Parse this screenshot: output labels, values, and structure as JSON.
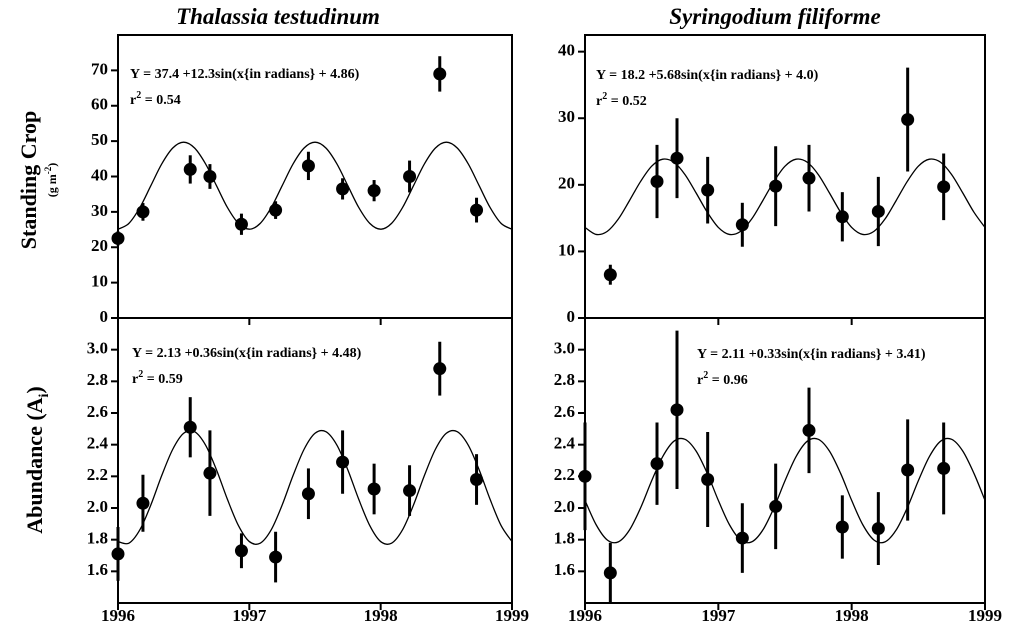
{
  "chart_data": [
    {
      "type": "scatter",
      "title": "Thalassia testudinum",
      "ylabel": "Standing Crop",
      "yunit_parts": [
        "(g m",
        "-2",
        ")"
      ],
      "equation": "Y = 37.4 +12.3sin(x{in radians} + 4.86)",
      "r2_parts": [
        "r",
        "2",
        " = 0.54"
      ],
      "color": "#000000",
      "x": [
        1996.0,
        1996.19,
        1996.55,
        1996.7,
        1996.94,
        1997.2,
        1997.45,
        1997.71,
        1997.95,
        1998.22,
        1998.45,
        1998.73
      ],
      "values": [
        22.5,
        30,
        42,
        40,
        26.5,
        30.5,
        43,
        36.5,
        36,
        40,
        69,
        30.5
      ],
      "errors": [
        2,
        2.5,
        4,
        3.5,
        3,
        2.5,
        4,
        3,
        3,
        4.5,
        5,
        3.5
      ],
      "fit": {
        "x": [
          1996,
          1996.083,
          1996.167,
          1996.25,
          1996.333,
          1996.417,
          1996.5,
          1996.583,
          1996.667,
          1996.75,
          1996.833,
          1996.917,
          1997,
          1997.083,
          1997.167,
          1997.25,
          1997.333,
          1997.417,
          1997.5,
          1997.583,
          1997.667,
          1997.75,
          1997.833,
          1997.917,
          1998,
          1998.083,
          1998.167,
          1998.25,
          1998.333,
          1998.417,
          1998.5,
          1998.583,
          1998.667,
          1998.75,
          1998.833,
          1998.917,
          1999
        ],
        "values": [
          25.1,
          26.75,
          31.25,
          37.4,
          43.55,
          48.05,
          49.7,
          48.05,
          43.55,
          37.4,
          31.25,
          26.75,
          25.1,
          26.75,
          31.25,
          37.4,
          43.55,
          48.05,
          49.7,
          48.05,
          43.55,
          37.4,
          31.25,
          26.75,
          25.1,
          26.75,
          31.25,
          37.4,
          43.55,
          48.05,
          49.7,
          48.05,
          43.55,
          37.4,
          31.25,
          26.75,
          25.1
        ]
      },
      "xlim": [
        1996,
        1999
      ],
      "ylim": [
        0,
        80
      ],
      "yticks": [
        0,
        10,
        20,
        30,
        40,
        50,
        60,
        70
      ]
    },
    {
      "type": "scatter",
      "title": "Syringodium filiforme",
      "equation": "Y = 18.2 +5.68sin(x{in radians} + 4.0)",
      "r2_parts": [
        "r",
        "2",
        " = 0.52"
      ],
      "color": "#000000",
      "x": [
        1996.19,
        1996.54,
        1996.69,
        1996.92,
        1997.18,
        1997.43,
        1997.68,
        1997.93,
        1998.2,
        1998.42,
        1998.69
      ],
      "values": [
        6.5,
        20.5,
        24,
        19.2,
        14,
        19.8,
        21,
        15.2,
        16,
        29.8,
        19.7
      ],
      "errors": [
        1.5,
        5.5,
        6,
        5,
        3.3,
        6,
        5,
        3.7,
        5.2,
        7.8,
        5
      ],
      "fit": {
        "x": [
          1996,
          1996.083,
          1996.167,
          1996.25,
          1996.333,
          1996.417,
          1996.5,
          1996.583,
          1996.667,
          1996.75,
          1996.833,
          1996.917,
          1997,
          1997.083,
          1997.167,
          1997.25,
          1997.333,
          1997.417,
          1997.5,
          1997.583,
          1997.667,
          1997.75,
          1997.833,
          1997.917,
          1998,
          1998.083,
          1998.167,
          1998.25,
          1998.333,
          1998.417,
          1998.5,
          1998.583,
          1998.667,
          1998.75,
          1998.833,
          1998.917,
          1999
        ],
        "values": [
          13.6,
          12.55,
          13.01,
          14.86,
          17.61,
          20.51,
          22.8,
          23.85,
          23.39,
          21.54,
          18.79,
          15.89,
          13.6,
          12.55,
          13.01,
          14.86,
          17.61,
          20.51,
          22.8,
          23.85,
          23.39,
          21.54,
          18.79,
          15.89,
          13.6,
          12.55,
          13.01,
          14.86,
          17.61,
          20.51,
          22.8,
          23.85,
          23.39,
          21.54,
          18.79,
          15.89,
          13.6
        ]
      },
      "xlim": [
        1996,
        1999
      ],
      "ylim": [
        0,
        42.5
      ],
      "yticks": [
        0,
        10,
        20,
        30,
        40
      ]
    },
    {
      "type": "scatter",
      "ylabel_parts": [
        "Abundance (A",
        "i",
        ")"
      ],
      "equation": "Y = 2.13 +0.36sin(x{in radians} + 4.48)",
      "r2_parts": [
        "r",
        "2",
        " = 0.59"
      ],
      "color": "#000000",
      "x": [
        1996.0,
        1996.19,
        1996.55,
        1996.7,
        1996.94,
        1997.2,
        1997.45,
        1997.71,
        1997.95,
        1998.22,
        1998.45,
        1998.73
      ],
      "values": [
        1.71,
        2.03,
        2.51,
        2.22,
        1.73,
        1.69,
        2.09,
        2.29,
        2.12,
        2.11,
        2.88,
        2.18
      ],
      "errors": [
        0.17,
        0.18,
        0.19,
        0.27,
        0.11,
        0.16,
        0.16,
        0.2,
        0.16,
        0.16,
        0.17,
        0.16
      ],
      "fit": {
        "x": [
          1996,
          1996.083,
          1996.167,
          1996.25,
          1996.333,
          1996.417,
          1996.5,
          1996.583,
          1996.667,
          1996.75,
          1996.833,
          1996.917,
          1997,
          1997.083,
          1997.167,
          1997.25,
          1997.333,
          1997.417,
          1997.5,
          1997.583,
          1997.667,
          1997.75,
          1997.833,
          1997.917,
          1998,
          1998.083,
          1998.167,
          1998.25,
          1998.333,
          1998.417,
          1998.5,
          1998.583,
          1998.667,
          1998.75,
          1998.833,
          1998.917,
          1999
        ],
        "values": [
          1.788,
          1.778,
          1.863,
          2.019,
          2.205,
          2.371,
          2.472,
          2.482,
          2.397,
          2.241,
          2.055,
          1.889,
          1.788,
          1.778,
          1.863,
          2.019,
          2.205,
          2.371,
          2.472,
          2.482,
          2.397,
          2.241,
          2.055,
          1.889,
          1.788,
          1.778,
          1.863,
          2.019,
          2.205,
          2.371,
          2.472,
          2.482,
          2.397,
          2.241,
          2.055,
          1.889,
          1.788
        ]
      },
      "xlim": [
        1996,
        1999
      ],
      "xticks": [
        1996,
        1997,
        1998,
        1999
      ],
      "ylim": [
        1.4,
        3.2
      ],
      "yticks": [
        1.6,
        1.8,
        {
          "value": 2,
          "label": "2.0"
        },
        2.2,
        2.4,
        2.6,
        2.8,
        {
          "value": 3,
          "label": "3.0"
        }
      ]
    },
    {
      "type": "scatter",
      "equation": "Y = 2.11 +0.33sin(x{in radians} + 3.41)",
      "r2_parts": [
        "r",
        "2",
        " = 0.96"
      ],
      "color": "#000000",
      "x": [
        1996.0,
        1996.19,
        1996.54,
        1996.69,
        1996.92,
        1997.18,
        1997.43,
        1997.68,
        1997.93,
        1998.2,
        1998.42,
        1998.69
      ],
      "values": [
        2.2,
        1.59,
        2.28,
        2.62,
        2.18,
        1.81,
        2.01,
        2.49,
        1.88,
        1.87,
        2.24,
        2.25
      ],
      "errors": [
        0.34,
        0.19,
        0.26,
        0.5,
        0.3,
        0.22,
        0.27,
        0.27,
        0.2,
        0.23,
        0.32,
        0.29
      ],
      "fit": {
        "x": [
          1996,
          1996.083,
          1996.167,
          1996.25,
          1996.333,
          1996.417,
          1996.5,
          1996.583,
          1996.667,
          1996.75,
          1996.833,
          1996.917,
          1997,
          1997.083,
          1997.167,
          1997.25,
          1997.333,
          1997.417,
          1997.5,
          1997.583,
          1997.667,
          1997.75,
          1997.833,
          1997.917,
          1998,
          1998.083,
          1998.167,
          1998.25,
          1998.333,
          1998.417,
          1998.5,
          1998.583,
          1998.667,
          1998.75,
          1998.833,
          1998.917,
          1999
        ],
        "values": [
          2.048,
          1.895,
          1.798,
          1.786,
          1.86,
          2.001,
          2.172,
          2.325,
          2.422,
          2.434,
          2.36,
          2.219,
          2.048,
          1.895,
          1.798,
          1.786,
          1.86,
          2.001,
          2.172,
          2.325,
          2.422,
          2.434,
          2.36,
          2.219,
          2.048,
          1.895,
          1.798,
          1.786,
          1.86,
          2.001,
          2.172,
          2.325,
          2.422,
          2.434,
          2.36,
          2.219,
          2.048
        ]
      },
      "xlim": [
        1996,
        1999
      ],
      "xticks": [
        1996,
        1997,
        1998,
        1999
      ],
      "ylim": [
        1.4,
        3.2
      ],
      "yticks": [
        1.6,
        1.8,
        {
          "value": 2,
          "label": "2.0"
        },
        2.2,
        2.4,
        2.6,
        2.8,
        {
          "value": 3,
          "label": "3.0"
        }
      ]
    }
  ]
}
